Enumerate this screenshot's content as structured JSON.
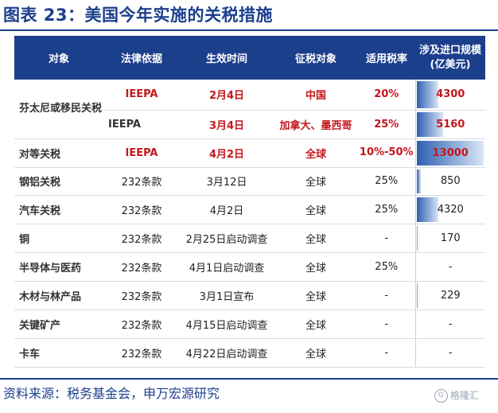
{
  "title": "图表 23：美国今年实施的关税措施",
  "table": {
    "headers": [
      "对象",
      "法律依据",
      "生效时间",
      "征税对象",
      "适用税率",
      "涉及进口规模(亿美元)"
    ],
    "rows": [
      {
        "item": "芬太尼或移民关税",
        "basis": "IEEPA",
        "date": "2月4日",
        "target": "中国",
        "rate": "20%",
        "value": "4300",
        "scale": 4300
      },
      {
        "item": "",
        "basis": "IEEPA",
        "date": "3月4日",
        "target": "加拿大、墨西哥",
        "rate": "25%",
        "value": "5160",
        "scale": 5160
      },
      {
        "item": "对等关税",
        "basis": "IEEPA",
        "date": "4月2日",
        "target": "全球",
        "rate": "10%-50%",
        "value": "13000",
        "scale": 13000
      },
      {
        "item": "钢铝关税",
        "basis": "232条款",
        "date": "3月12日",
        "target": "全球",
        "rate": "25%",
        "value": "850",
        "scale": 850
      },
      {
        "item": "汽车关税",
        "basis": "232条款",
        "date": "4月2日",
        "target": "全球",
        "rate": "25%",
        "value": "4320",
        "scale": 4320
      },
      {
        "item": "铜",
        "basis": "232条款",
        "date": "2月25日启动调查",
        "target": "全球",
        "rate": "-",
        "value": "170",
        "scale": 170
      },
      {
        "item": "半导体与医药",
        "basis": "232条款",
        "date": "4月1日启动调查",
        "target": "全球",
        "rate": "25%",
        "value": "-",
        "scale": 0
      },
      {
        "item": "木材与林产品",
        "basis": "232条款",
        "date": "3月1日宣布",
        "target": "全球",
        "rate": "-",
        "value": "229",
        "scale": 229
      },
      {
        "item": "关键矿产",
        "basis": "232条款",
        "date": "4月15日启动调查",
        "target": "全球",
        "rate": "-",
        "value": "-",
        "scale": 0
      },
      {
        "item": "卡车",
        "basis": "232条款",
        "date": "4月22日启动调查",
        "target": "全球",
        "rate": "-",
        "value": "-",
        "scale": 0
      }
    ],
    "scale_max": 13000
  },
  "footer": {
    "source": "资料来源：税务基金会，申万宏源研究",
    "watermark": "格隆汇"
  },
  "colors": {
    "header_bg": "#1c3f8c",
    "highlight_text": "#c4161c",
    "bar": "#2f5fae"
  }
}
